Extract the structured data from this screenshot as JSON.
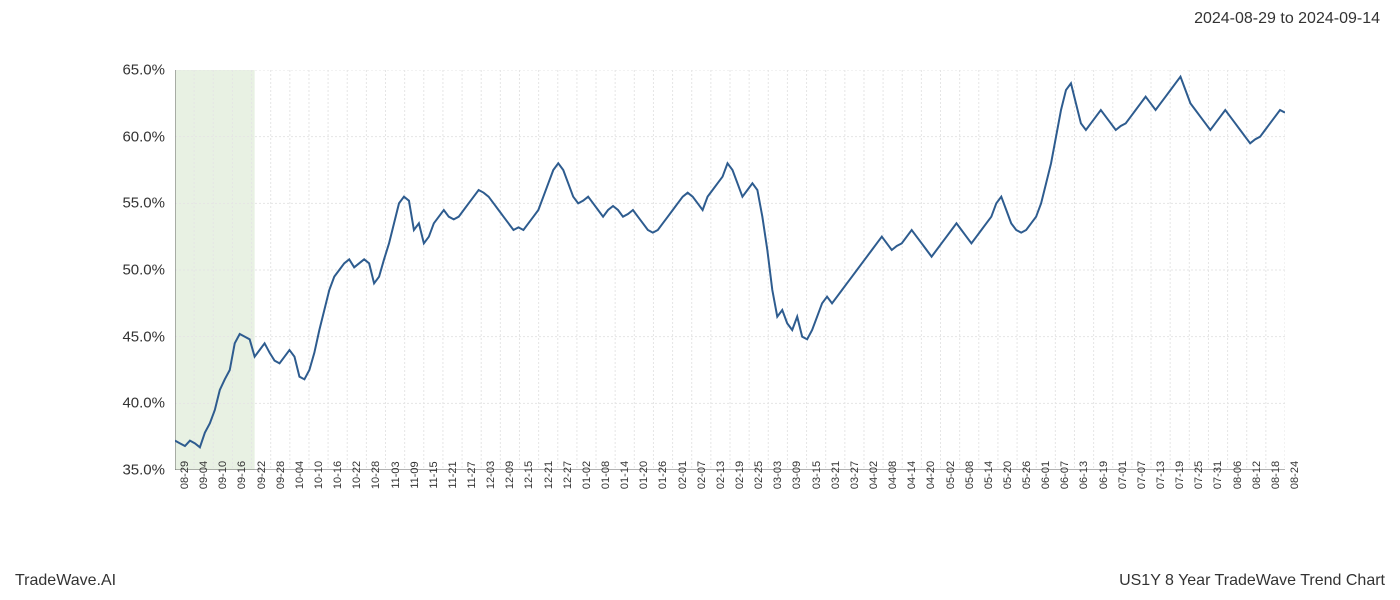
{
  "header": {
    "date_range": "2024-08-29 to 2024-09-14"
  },
  "footer": {
    "left": "TradeWave.AI",
    "right": "US1Y 8 Year TradeWave Trend Chart"
  },
  "chart": {
    "type": "line",
    "background_color": "#ffffff",
    "line_color": "#2e5c8f",
    "line_width": 2,
    "grid_color": "#e5e5e5",
    "grid_dash": "2,2",
    "axis_color": "#666666",
    "highlight_band": {
      "start_x": 0,
      "end_x": 16,
      "fill_color": "#d8e8d0",
      "opacity": 0.6
    },
    "ylim": [
      35,
      65
    ],
    "ytick_step": 5,
    "y_ticks": [
      {
        "value": 35,
        "label": "35.0%"
      },
      {
        "value": 40,
        "label": "40.0%"
      },
      {
        "value": 45,
        "label": "45.0%"
      },
      {
        "value": 50,
        "label": "50.0%"
      },
      {
        "value": 55,
        "label": "55.0%"
      },
      {
        "value": 60,
        "label": "60.0%"
      },
      {
        "value": 65,
        "label": "65.0%"
      }
    ],
    "x_labels": [
      "08-29",
      "09-04",
      "09-10",
      "09-16",
      "09-22",
      "09-28",
      "10-04",
      "10-10",
      "10-16",
      "10-22",
      "10-28",
      "11-03",
      "11-09",
      "11-15",
      "11-21",
      "11-27",
      "12-03",
      "12-09",
      "12-15",
      "12-21",
      "12-27",
      "01-02",
      "01-08",
      "01-14",
      "01-20",
      "01-26",
      "02-01",
      "02-07",
      "02-13",
      "02-19",
      "02-25",
      "03-03",
      "03-09",
      "03-15",
      "03-21",
      "03-27",
      "04-02",
      "04-08",
      "04-14",
      "04-20",
      "05-02",
      "05-08",
      "05-14",
      "05-20",
      "05-26",
      "06-01",
      "06-07",
      "06-13",
      "06-19",
      "07-01",
      "07-07",
      "07-13",
      "07-19",
      "07-25",
      "07-31",
      "08-06",
      "08-12",
      "08-18",
      "08-24"
    ],
    "data_points": [
      37.2,
      37.0,
      36.8,
      37.2,
      37.0,
      36.7,
      37.8,
      38.5,
      39.5,
      41.0,
      41.8,
      42.5,
      44.5,
      45.2,
      45.0,
      44.8,
      43.5,
      44.0,
      44.5,
      43.8,
      43.2,
      43.0,
      43.5,
      44.0,
      43.5,
      42.0,
      41.8,
      42.5,
      43.8,
      45.5,
      47.0,
      48.5,
      49.5,
      50.0,
      50.5,
      50.8,
      50.2,
      50.5,
      50.8,
      50.5,
      49.0,
      49.5,
      50.8,
      52.0,
      53.5,
      55.0,
      55.5,
      55.2,
      53.0,
      53.5,
      52.0,
      52.5,
      53.5,
      54.0,
      54.5,
      54.0,
      53.8,
      54.0,
      54.5,
      55.0,
      55.5,
      56.0,
      55.8,
      55.5,
      55.0,
      54.5,
      54.0,
      53.5,
      53.0,
      53.2,
      53.0,
      53.5,
      54.0,
      54.5,
      55.5,
      56.5,
      57.5,
      58.0,
      57.5,
      56.5,
      55.5,
      55.0,
      55.2,
      55.5,
      55.0,
      54.5,
      54.0,
      54.5,
      54.8,
      54.5,
      54.0,
      54.2,
      54.5,
      54.0,
      53.5,
      53.0,
      52.8,
      53.0,
      53.5,
      54.0,
      54.5,
      55.0,
      55.5,
      55.8,
      55.5,
      55.0,
      54.5,
      55.5,
      56.0,
      56.5,
      57.0,
      58.0,
      57.5,
      56.5,
      55.5,
      56.0,
      56.5,
      56.0,
      54.0,
      51.5,
      48.5,
      46.5,
      47.0,
      46.0,
      45.5,
      46.5,
      45.0,
      44.8,
      45.5,
      46.5,
      47.5,
      48.0,
      47.5,
      48.0,
      48.5,
      49.0,
      49.5,
      50.0,
      50.5,
      51.0,
      51.5,
      52.0,
      52.5,
      52.0,
      51.5,
      51.8,
      52.0,
      52.5,
      53.0,
      52.5,
      52.0,
      51.5,
      51.0,
      51.5,
      52.0,
      52.5,
      53.0,
      53.5,
      53.0,
      52.5,
      52.0,
      52.5,
      53.0,
      53.5,
      54.0,
      55.0,
      55.5,
      54.5,
      53.5,
      53.0,
      52.8,
      53.0,
      53.5,
      54.0,
      55.0,
      56.5,
      58.0,
      60.0,
      62.0,
      63.5,
      64.0,
      62.5,
      61.0,
      60.5,
      61.0,
      61.5,
      62.0,
      61.5,
      61.0,
      60.5,
      60.8,
      61.0,
      61.5,
      62.0,
      62.5,
      63.0,
      62.5,
      62.0,
      62.5,
      63.0,
      63.5,
      64.0,
      64.5,
      63.5,
      62.5,
      62.0,
      61.5,
      61.0,
      60.5,
      61.0,
      61.5,
      62.0,
      61.5,
      61.0,
      60.5,
      60.0,
      59.5,
      59.8,
      60.0,
      60.5,
      61.0,
      61.5,
      62.0,
      61.8
    ],
    "label_fontsize": 15,
    "xlabel_fontsize": 11
  }
}
